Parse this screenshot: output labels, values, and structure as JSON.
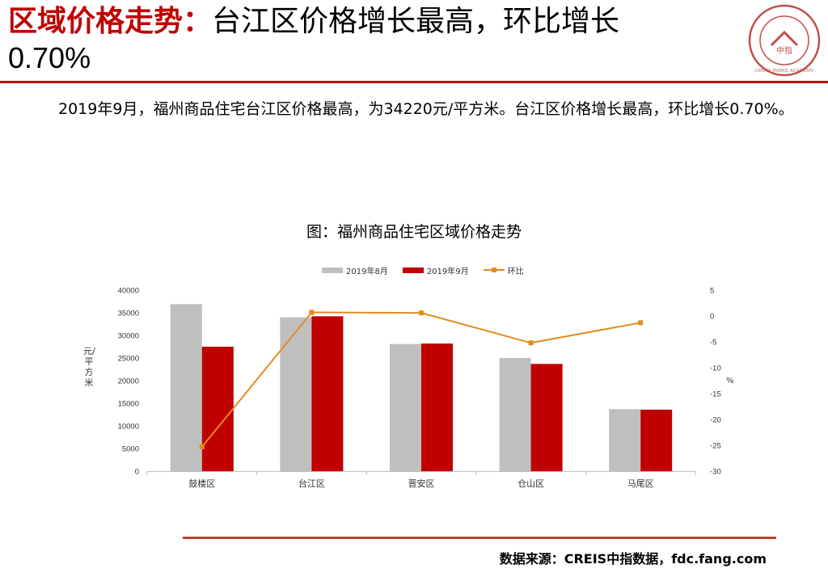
{
  "header": {
    "title_highlight": "区域价格走势：",
    "title_rest": "台江区价格增长最高，环比增长",
    "title_line2": "0.70%",
    "logo_text": "CHINA INDEX ACADEMY",
    "logo_center": "中指"
  },
  "summary": {
    "text": "2019年9月，福州商品住宅台江区价格最高，为34220元/平方米。台江区价格增长最高，环比增长0.70%。"
  },
  "chart_data": {
    "type": "bar",
    "title": "图：福州商品住宅区域价格走势",
    "categories": [
      "鼓楼区",
      "台江区",
      "晋安区",
      "仓山区",
      "马尾区"
    ],
    "series": [
      {
        "name": "2019年8月",
        "type": "bar",
        "axis": "left",
        "color": "#bfbfbf",
        "values": [
          36900,
          34000,
          28100,
          25000,
          13700
        ]
      },
      {
        "name": "2019年9月",
        "type": "bar",
        "axis": "left",
        "color": "#c00000",
        "values": [
          27500,
          34220,
          28200,
          23700,
          13600
        ]
      },
      {
        "name": "环比",
        "type": "line",
        "axis": "right",
        "color": "#e38a1f",
        "values": [
          -25.3,
          0.7,
          0.6,
          -5.2,
          -1.3
        ]
      }
    ],
    "ylabel": "元/平方米",
    "ylabel_right": "%",
    "ylim": [
      0,
      40000
    ],
    "yticks": [
      0,
      5000,
      10000,
      15000,
      20000,
      25000,
      30000,
      35000,
      40000
    ],
    "ylim_right": [
      -30,
      5
    ],
    "yticks_right": [
      -30,
      -25,
      -20,
      -15,
      -10,
      -5,
      0,
      5
    ],
    "legend_position": "top-center"
  },
  "footer": {
    "source": "数据来源：CREIS中指数据，fdc.fang.com"
  }
}
